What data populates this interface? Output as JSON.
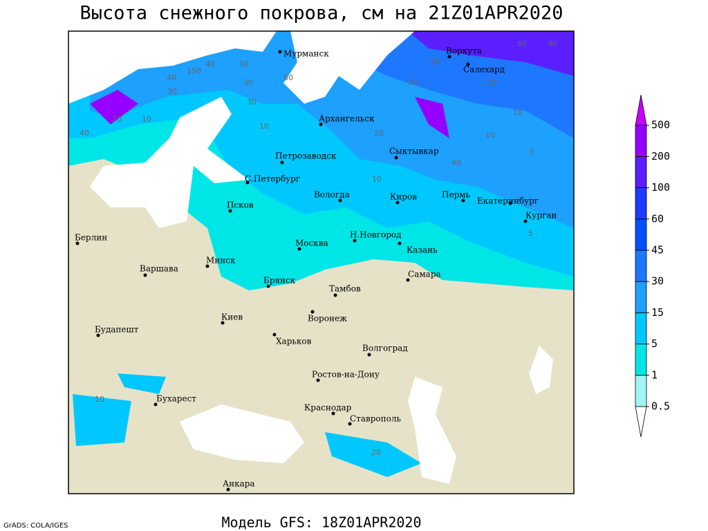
{
  "title": "Высота снежного покрова, см на 21Z01APR2020",
  "footer": "Модель GFS: 18Z01APR2020",
  "credit": "GrADS: COLA/IGES",
  "cities": [
    "Мурманск",
    "Воркута",
    "Салехард",
    "Архангельск",
    "Сыктывкар",
    "Петрозаводск",
    "С.Петербург",
    "Вологда",
    "Киров",
    "Пермь",
    "Екатеринбург",
    "Курган",
    "Псков",
    "Берлин",
    "Москва",
    "Н.Новгород",
    "Казань",
    "Варшава",
    "Минск",
    "Брянск",
    "Самара",
    "Тамбов",
    "Киев",
    "Воронеж",
    "Харьков",
    "Будапешт",
    "Волгоград",
    "Ростов-на-Дону",
    "Бухарест",
    "Краснодар",
    "Ставрополь",
    "Анкара"
  ],
  "contour_labels": [
    60,
    40,
    60,
    20,
    30,
    20,
    10,
    10,
    40,
    40,
    150,
    40,
    30,
    30,
    60,
    30,
    30,
    10,
    10,
    20,
    40,
    5,
    10,
    5,
    10,
    20
  ],
  "legend": {
    "levels": [
      0.5,
      1,
      5,
      15,
      30,
      45,
      60,
      100,
      200,
      500
    ],
    "colors": [
      "#ffffff",
      "#a0f5f5",
      "#00e6e6",
      "#00c8ff",
      "#1ea0ff",
      "#1e78ff",
      "#0050ff",
      "#1e3cff",
      "#5a1eff",
      "#9600ff",
      "#c800ff"
    ]
  }
}
